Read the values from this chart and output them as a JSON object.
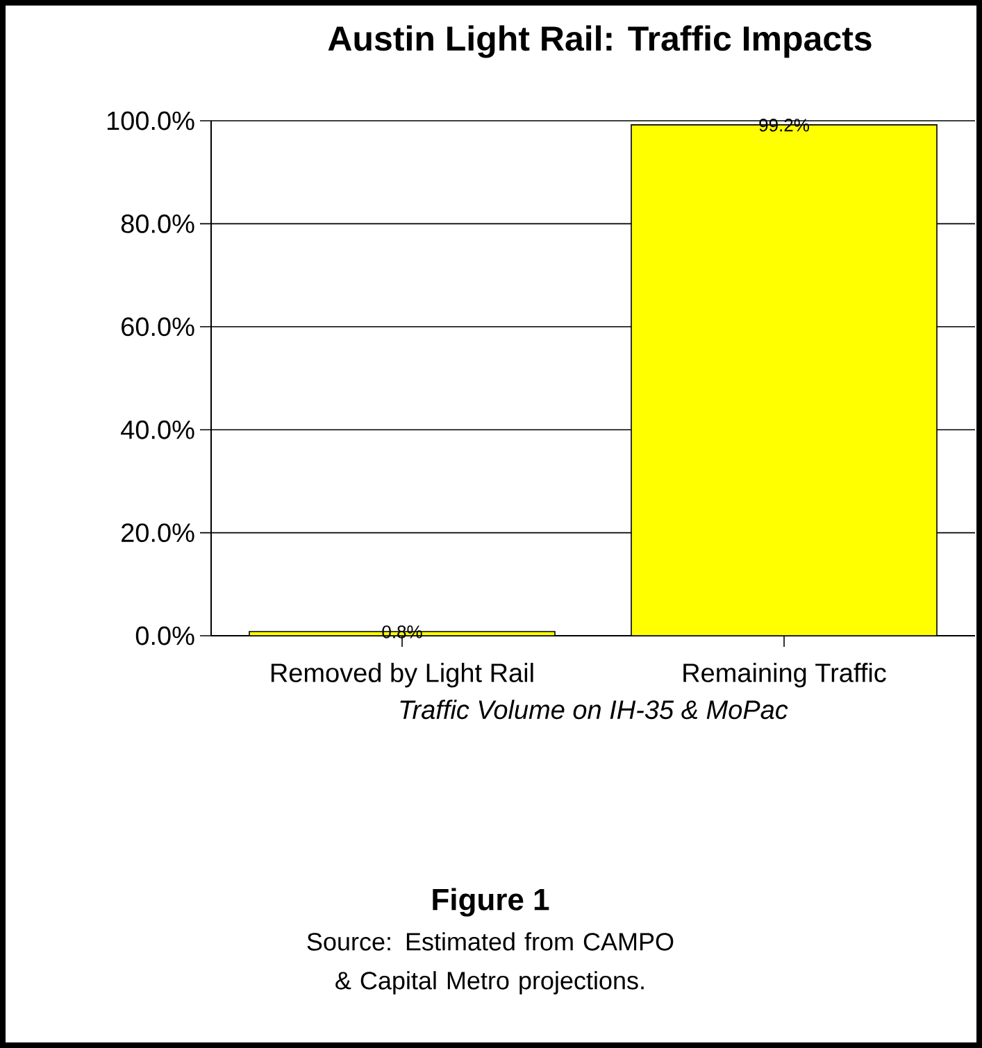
{
  "chart_data": {
    "type": "bar",
    "title": "Austin Light Rail: Traffic Impacts",
    "xlabel": "Traffic Volume on IH-35 & MoPac",
    "categories": [
      "Removed by Light Rail",
      "Remaining Traffic"
    ],
    "values": [
      0.8,
      99.2
    ],
    "value_labels": [
      "0.8%",
      "99.2%"
    ],
    "color": "#ffff00",
    "ylim": [
      0,
      100
    ],
    "yticks": [
      {
        "value": 0,
        "label": "0.0%"
      },
      {
        "value": 20,
        "label": "20.0%"
      },
      {
        "value": 40,
        "label": "40.0%"
      },
      {
        "value": 60,
        "label": "60.0%"
      },
      {
        "value": 80,
        "label": "80.0%"
      },
      {
        "value": 100,
        "label": "100.0%"
      }
    ],
    "grid": "y",
    "annotations": [
      "Figure 1",
      "Source: Estimated from CAMPO & Capital Metro projections."
    ]
  }
}
